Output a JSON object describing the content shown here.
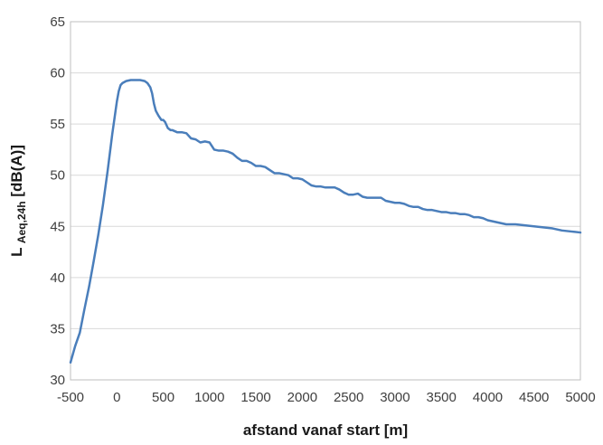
{
  "chart_data": {
    "type": "line",
    "title": "",
    "xlabel": "afstand vanaf start [m]",
    "ylabel": {
      "main": "L",
      "subscript": "Aeq,24h",
      "unit": " [dB(A)]"
    },
    "xlim": [
      -500,
      5000
    ],
    "ylim": [
      30,
      65
    ],
    "x_ticks": [
      -500,
      0,
      500,
      1000,
      1500,
      2000,
      2500,
      3000,
      3500,
      4000,
      4500,
      5000
    ],
    "y_ticks": [
      30,
      35,
      40,
      45,
      50,
      55,
      60,
      65
    ],
    "x_tick_labels": [
      "-500",
      "0",
      "500",
      "1000",
      "1500",
      "2000",
      "2500",
      "3000",
      "3500",
      "4000",
      "4500",
      "5000"
    ],
    "y_tick_labels": [
      "30",
      "35",
      "40",
      "45",
      "50",
      "55",
      "60",
      "65"
    ],
    "grid": "horizontal",
    "legend": "none",
    "colors": {
      "series": "#4a7ebb",
      "grid": "#d9d9d9",
      "frame": "#bfbfbf"
    },
    "series": [
      {
        "x": [
          -500,
          -450,
          -400,
          -350,
          -300,
          -250,
          -200,
          -150,
          -100,
          -50,
          0,
          20,
          40,
          60,
          80,
          100,
          150,
          200,
          250,
          300,
          330,
          360,
          380,
          400,
          420,
          450,
          480,
          500,
          520,
          550,
          580,
          600,
          650,
          700,
          750,
          800,
          850,
          900,
          950,
          1000,
          1050,
          1100,
          1150,
          1200,
          1250,
          1300,
          1350,
          1400,
          1450,
          1500,
          1550,
          1600,
          1650,
          1700,
          1750,
          1800,
          1850,
          1900,
          1950,
          2000,
          2050,
          2100,
          2150,
          2200,
          2250,
          2300,
          2350,
          2400,
          2450,
          2500,
          2550,
          2600,
          2650,
          2700,
          2750,
          2800,
          2850,
          2900,
          2950,
          3000,
          3050,
          3100,
          3150,
          3200,
          3250,
          3300,
          3350,
          3400,
          3450,
          3500,
          3550,
          3600,
          3650,
          3700,
          3750,
          3800,
          3850,
          3900,
          3950,
          4000,
          4100,
          4200,
          4300,
          4400,
          4500,
          4600,
          4700,
          4800,
          4900,
          5000
        ],
        "y": [
          31.7,
          33.3,
          34.6,
          36.9,
          39.1,
          41.6,
          44.2,
          47.1,
          50.4,
          54.0,
          57.2,
          58.2,
          58.8,
          59.0,
          59.1,
          59.2,
          59.3,
          59.3,
          59.3,
          59.2,
          59.0,
          58.6,
          58.0,
          57.0,
          56.3,
          55.8,
          55.4,
          55.4,
          55.2,
          54.6,
          54.4,
          54.4,
          54.2,
          54.2,
          54.1,
          53.6,
          53.5,
          53.2,
          53.3,
          53.2,
          52.5,
          52.4,
          52.4,
          52.3,
          52.1,
          51.7,
          51.4,
          51.4,
          51.2,
          50.9,
          50.9,
          50.8,
          50.5,
          50.2,
          50.2,
          50.1,
          50.0,
          49.7,
          49.7,
          49.6,
          49.3,
          49.0,
          48.9,
          48.9,
          48.8,
          48.8,
          48.8,
          48.6,
          48.3,
          48.1,
          48.1,
          48.2,
          47.9,
          47.8,
          47.8,
          47.8,
          47.8,
          47.5,
          47.4,
          47.3,
          47.3,
          47.2,
          47.0,
          46.9,
          46.9,
          46.7,
          46.6,
          46.6,
          46.5,
          46.4,
          46.4,
          46.3,
          46.3,
          46.2,
          46.2,
          46.1,
          45.9,
          45.9,
          45.8,
          45.6,
          45.4,
          45.2,
          45.2,
          45.1,
          45.0,
          44.9,
          44.8,
          44.6,
          44.5,
          44.4
        ]
      }
    ]
  }
}
